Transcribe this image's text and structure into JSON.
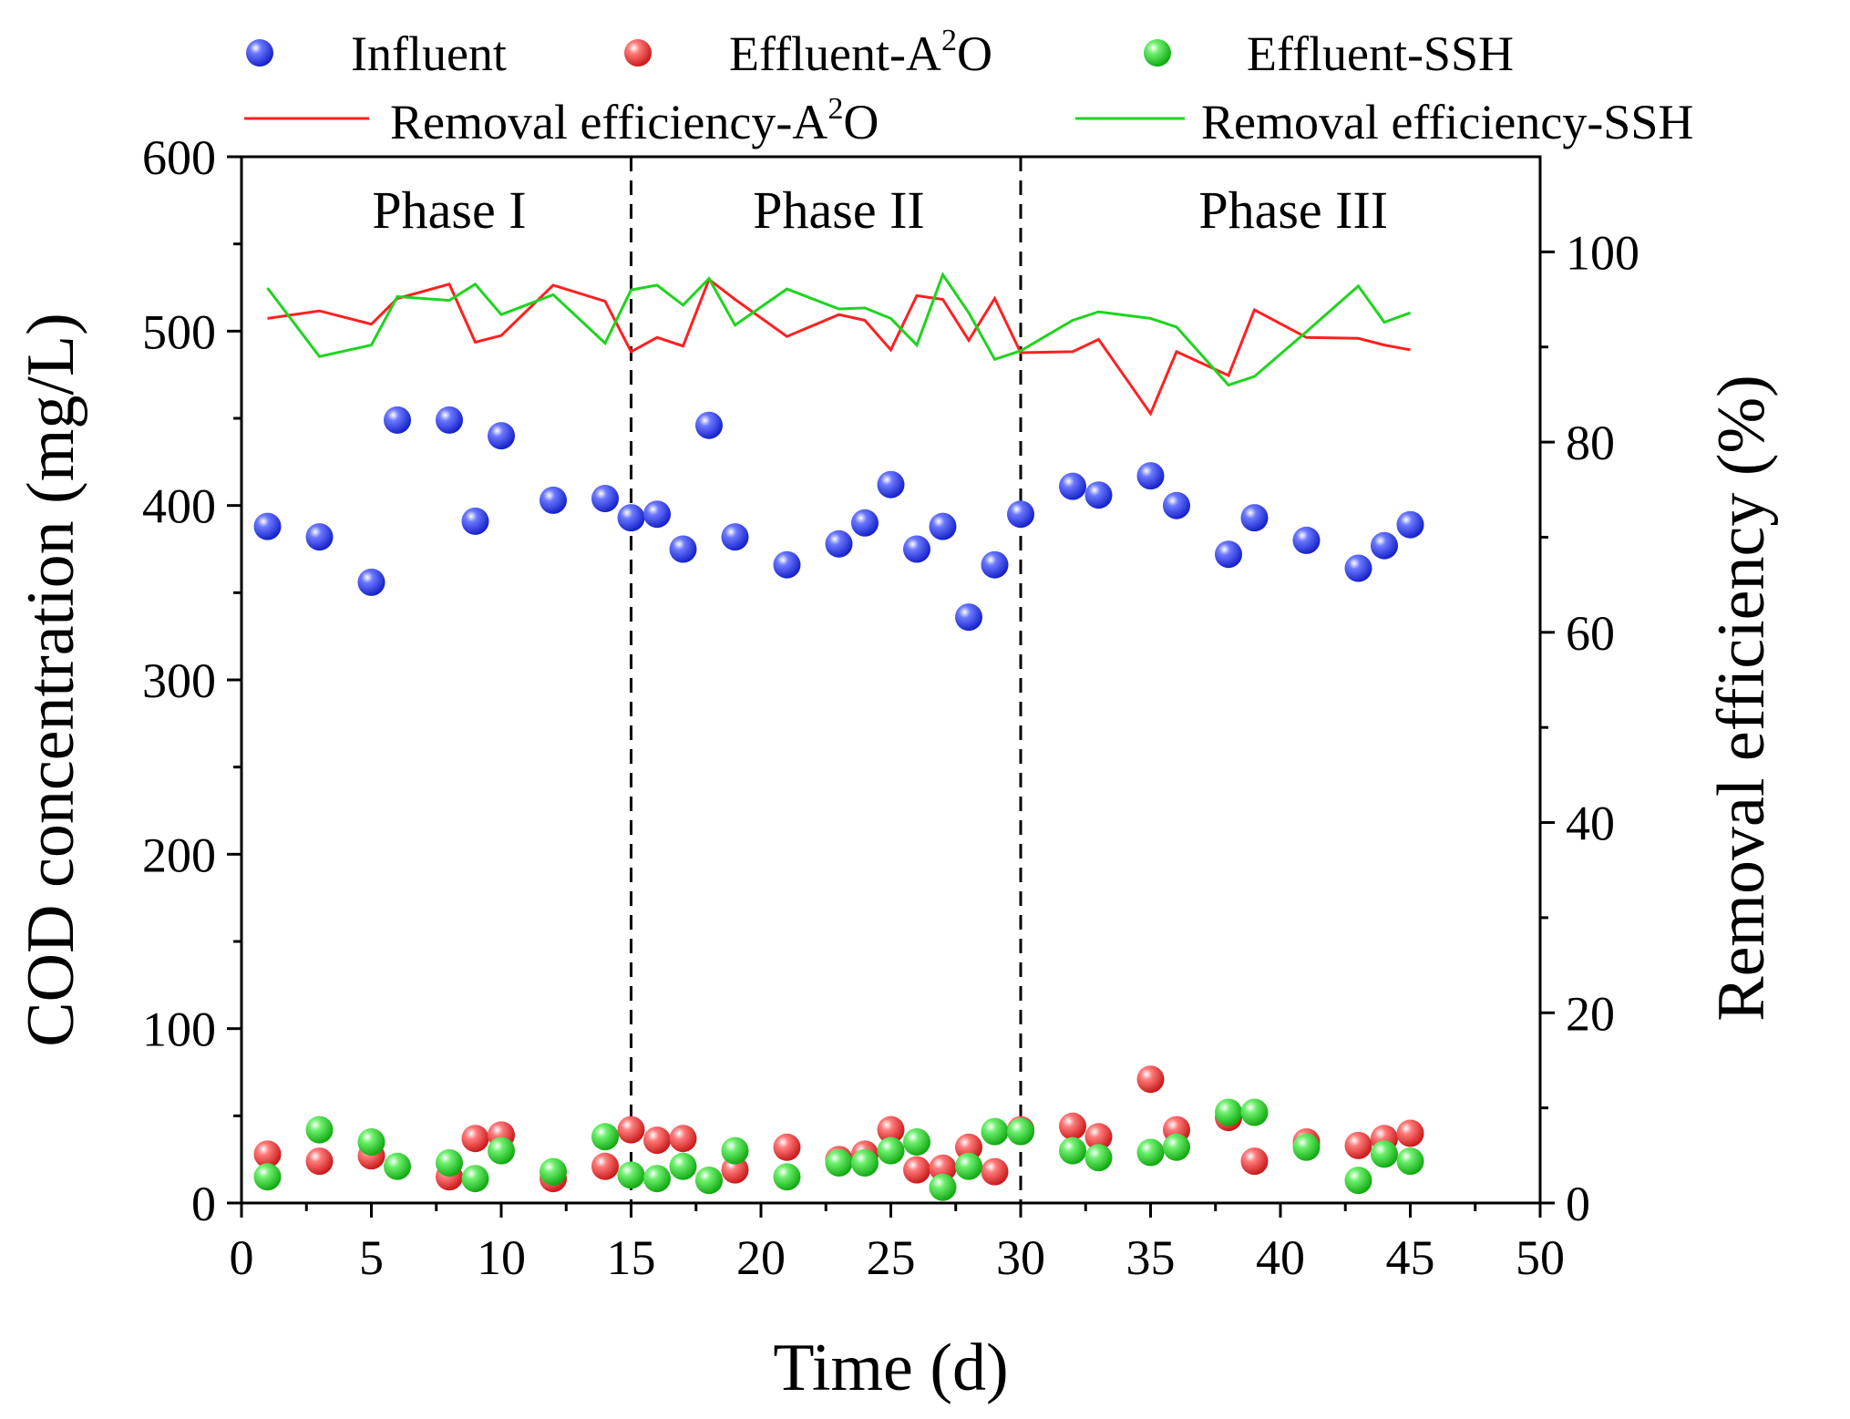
{
  "chart_data": {
    "type": "scatter+line",
    "xlabel": "Time (d)",
    "ylabel_left": "COD concentration (mg/L)",
    "ylabel_right": "Removal efficiency (%)",
    "xlim": [
      0,
      50
    ],
    "ylim_left": [
      0,
      600
    ],
    "ylim_right": [
      0,
      110
    ],
    "x_ticks": [
      "0",
      "5",
      "10",
      "15",
      "20",
      "25",
      "30",
      "35",
      "40",
      "45",
      "50"
    ],
    "y_left_ticks": [
      "0",
      "100",
      "200",
      "300",
      "400",
      "500",
      "600"
    ],
    "y_right_ticks": [
      "0",
      "20",
      "40",
      "60",
      "80",
      "100"
    ],
    "phase_boundaries": [
      15,
      30
    ],
    "phases": [
      {
        "label": "Phase I",
        "center": 8
      },
      {
        "label": "Phase II",
        "center": 23
      },
      {
        "label": "Phase III",
        "center": 40.5
      }
    ],
    "colors": {
      "influent": "#2f3fe8",
      "effluent_a2o": "#e83838",
      "effluent_ssh": "#22cc22",
      "line_a2o": "#ff2020",
      "line_ssh": "#1ed41e"
    },
    "legend": {
      "influent": "Influent",
      "effluent_a2o": "Effluent-A",
      "effluent_ssh": "Effluent-SSH",
      "line_a2o": "Removal efficiency-A",
      "line_ssh": "Removal efficiency-SSH",
      "superscript": "2",
      "o_suffix": "O"
    },
    "series": [
      {
        "name": "Influent",
        "type": "scatter",
        "axis": "left",
        "points": [
          [
            1,
            388
          ],
          [
            3,
            382
          ],
          [
            5,
            356
          ],
          [
            6,
            449
          ],
          [
            8,
            449
          ],
          [
            9,
            391
          ],
          [
            10,
            440
          ],
          [
            12,
            403
          ],
          [
            14,
            404
          ],
          [
            15,
            393
          ],
          [
            16,
            395
          ],
          [
            17,
            375
          ],
          [
            18,
            446
          ],
          [
            19,
            382
          ],
          [
            21,
            366
          ],
          [
            23,
            378
          ],
          [
            24,
            390
          ],
          [
            25,
            412
          ],
          [
            26,
            375
          ],
          [
            27,
            388
          ],
          [
            28,
            336
          ],
          [
            29,
            366
          ],
          [
            30,
            395
          ],
          [
            32,
            411
          ],
          [
            33,
            406
          ],
          [
            35,
            417
          ],
          [
            36,
            400
          ],
          [
            38,
            372
          ],
          [
            39,
            393
          ],
          [
            41,
            380
          ],
          [
            43,
            364
          ],
          [
            44,
            377
          ],
          [
            45,
            389
          ]
        ]
      },
      {
        "name": "Effluent-A2O",
        "type": "scatter",
        "axis": "left",
        "points": [
          [
            1,
            28
          ],
          [
            3,
            24
          ],
          [
            5,
            27
          ],
          [
            8,
            15
          ],
          [
            9,
            37
          ],
          [
            10,
            39
          ],
          [
            12,
            14
          ],
          [
            14,
            21
          ],
          [
            15,
            42
          ],
          [
            16,
            36
          ],
          [
            17,
            37
          ],
          [
            18,
            13
          ],
          [
            19,
            19
          ],
          [
            21,
            32
          ],
          [
            23,
            25
          ],
          [
            24,
            28
          ],
          [
            25,
            42
          ],
          [
            26,
            19
          ],
          [
            27,
            20
          ],
          [
            28,
            32
          ],
          [
            29,
            18
          ],
          [
            30,
            42
          ],
          [
            32,
            44
          ],
          [
            33,
            38
          ],
          [
            35,
            71
          ],
          [
            36,
            42
          ],
          [
            38,
            49
          ],
          [
            39,
            24
          ],
          [
            41,
            35
          ],
          [
            43,
            33
          ],
          [
            44,
            37
          ],
          [
            45,
            40
          ]
        ]
      },
      {
        "name": "Effluent-SSH",
        "type": "scatter",
        "axis": "left",
        "points": [
          [
            1,
            15
          ],
          [
            3,
            42
          ],
          [
            5,
            35
          ],
          [
            6,
            21
          ],
          [
            8,
            23
          ],
          [
            9,
            14
          ],
          [
            10,
            30
          ],
          [
            12,
            18
          ],
          [
            14,
            38
          ],
          [
            15,
            16
          ],
          [
            16,
            14
          ],
          [
            17,
            21
          ],
          [
            18,
            13
          ],
          [
            19,
            30
          ],
          [
            21,
            15
          ],
          [
            23,
            23
          ],
          [
            24,
            23
          ],
          [
            25,
            30
          ],
          [
            26,
            35
          ],
          [
            27,
            9
          ],
          [
            28,
            21
          ],
          [
            29,
            41
          ],
          [
            30,
            41
          ],
          [
            32,
            30
          ],
          [
            33,
            26
          ],
          [
            35,
            29
          ],
          [
            36,
            32
          ],
          [
            38,
            52
          ],
          [
            39,
            52
          ],
          [
            41,
            32
          ],
          [
            43,
            13
          ],
          [
            44,
            28
          ],
          [
            45,
            24
          ]
        ]
      },
      {
        "name": "Removal efficiency-A2O",
        "type": "line",
        "axis": "right",
        "points": [
          [
            1,
            93
          ],
          [
            3,
            93.8
          ],
          [
            5,
            92.4
          ],
          [
            6,
            95.1
          ],
          [
            8,
            96.6
          ],
          [
            9,
            90.5
          ],
          [
            10,
            91.2
          ],
          [
            12,
            96.5
          ],
          [
            14,
            94.8
          ],
          [
            15,
            89.5
          ],
          [
            16,
            91
          ],
          [
            17,
            90.1
          ],
          [
            18,
            97.1
          ],
          [
            19,
            95
          ],
          [
            21,
            91.1
          ],
          [
            23,
            93.4
          ],
          [
            24,
            92.8
          ],
          [
            25,
            89.7
          ],
          [
            26,
            95.4
          ],
          [
            27,
            95
          ],
          [
            28,
            90.7
          ],
          [
            29,
            95.1
          ],
          [
            30,
            89.4
          ],
          [
            32,
            89.5
          ],
          [
            33,
            90.8
          ],
          [
            35,
            83
          ],
          [
            36,
            89.5
          ],
          [
            38,
            87
          ],
          [
            39,
            93.9
          ],
          [
            41,
            91
          ],
          [
            43,
            90.9
          ],
          [
            44,
            90.2
          ],
          [
            45,
            89.7
          ]
        ]
      },
      {
        "name": "Removal efficiency-SSH",
        "type": "line",
        "axis": "right",
        "points": [
          [
            1,
            96.2
          ],
          [
            3,
            89
          ],
          [
            5,
            90.2
          ],
          [
            6,
            95.3
          ],
          [
            8,
            94.9
          ],
          [
            9,
            96.6
          ],
          [
            10,
            93.4
          ],
          [
            12,
            95.5
          ],
          [
            14,
            90.4
          ],
          [
            15,
            96
          ],
          [
            16,
            96.5
          ],
          [
            17,
            94.4
          ],
          [
            18,
            97.2
          ],
          [
            19,
            92.3
          ],
          [
            21,
            96.1
          ],
          [
            23,
            94
          ],
          [
            24,
            94.1
          ],
          [
            25,
            93
          ],
          [
            26,
            90.2
          ],
          [
            27,
            97.6
          ],
          [
            28,
            93.6
          ],
          [
            29,
            88.7
          ],
          [
            30,
            89.6
          ],
          [
            32,
            92.8
          ],
          [
            33,
            93.7
          ],
          [
            35,
            93
          ],
          [
            36,
            92.1
          ],
          [
            38,
            86
          ],
          [
            39,
            86.9
          ],
          [
            41,
            91.6
          ],
          [
            43,
            96.4
          ],
          [
            44,
            92.6
          ],
          [
            45,
            93.6
          ]
        ]
      }
    ]
  }
}
